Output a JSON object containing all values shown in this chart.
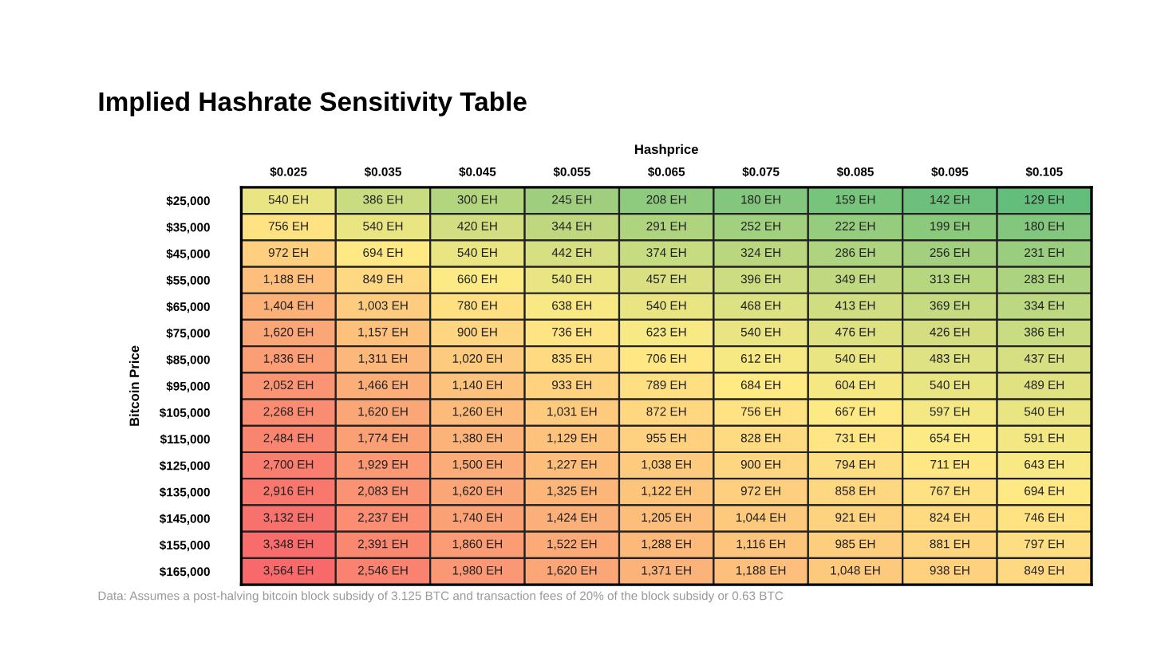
{
  "chart_data": {
    "type": "heatmap",
    "title": "Implied Hashrate Sensitivity Table",
    "xlabel": "Hashprice",
    "ylabel": "Bitcoin Price",
    "annotations": [
      "Data: Assumes a post-halving bitcoin block subsidy of 3.125 BTC and transaction fees of 20% of the block subsidy or 0.63 BTC"
    ],
    "categories": [
      "$0.025",
      "$0.035",
      "$0.045",
      "$0.055",
      "$0.065",
      "$0.075",
      "$0.085",
      "$0.095",
      "$0.105"
    ],
    "y_categories": [
      "$25,000",
      "$35,000",
      "$45,000",
      "$55,000",
      "$65,000",
      "$75,000",
      "$85,000",
      "$95,000",
      "$105,000",
      "$115,000",
      "$125,000",
      "$135,000",
      "$145,000",
      "$155,000",
      "$165,000"
    ],
    "cells": [
      [
        540,
        386,
        300,
        245,
        208,
        180,
        159,
        142,
        129
      ],
      [
        756,
        540,
        420,
        344,
        291,
        252,
        222,
        199,
        180
      ],
      [
        972,
        694,
        540,
        442,
        374,
        324,
        286,
        256,
        231
      ],
      [
        1188,
        849,
        660,
        540,
        457,
        396,
        349,
        313,
        283
      ],
      [
        1404,
        1003,
        780,
        638,
        540,
        468,
        413,
        369,
        334
      ],
      [
        1620,
        1157,
        900,
        736,
        623,
        540,
        476,
        426,
        386
      ],
      [
        1836,
        1311,
        1020,
        835,
        706,
        612,
        540,
        483,
        437
      ],
      [
        2052,
        1466,
        1140,
        933,
        789,
        684,
        604,
        540,
        489
      ],
      [
        2268,
        1620,
        1260,
        1031,
        872,
        756,
        667,
        597,
        540
      ],
      [
        2484,
        1774,
        1380,
        1129,
        955,
        828,
        731,
        654,
        591
      ],
      [
        2700,
        1929,
        1500,
        1227,
        1038,
        900,
        794,
        711,
        643
      ],
      [
        2916,
        2083,
        1620,
        1325,
        1122,
        972,
        858,
        767,
        694
      ],
      [
        3132,
        2237,
        1740,
        1424,
        1205,
        1044,
        921,
        824,
        746
      ],
      [
        3348,
        2391,
        1860,
        1522,
        1288,
        1116,
        985,
        881,
        797
      ],
      [
        3564,
        2546,
        1980,
        1620,
        1371,
        1188,
        1048,
        938,
        849
      ]
    ],
    "cell_labels": [
      [
        "540 EH",
        "386 EH",
        "300 EH",
        "245 EH",
        "208 EH",
        "180 EH",
        "159 EH",
        "142 EH",
        "129 EH"
      ],
      [
        "756 EH",
        "540 EH",
        "420 EH",
        "344 EH",
        "291 EH",
        "252 EH",
        "222 EH",
        "199 EH",
        "180 EH"
      ],
      [
        "972 EH",
        "694 EH",
        "540 EH",
        "442 EH",
        "374 EH",
        "324 EH",
        "286 EH",
        "256 EH",
        "231 EH"
      ],
      [
        "1,188 EH",
        "849 EH",
        "660 EH",
        "540 EH",
        "457 EH",
        "396 EH",
        "349 EH",
        "313 EH",
        "283 EH"
      ],
      [
        "1,404 EH",
        "1,003 EH",
        "780 EH",
        "638 EH",
        "540 EH",
        "468 EH",
        "413 EH",
        "369 EH",
        "334 EH"
      ],
      [
        "1,620 EH",
        "1,157 EH",
        "900 EH",
        "736 EH",
        "623 EH",
        "540 EH",
        "476 EH",
        "426 EH",
        "386 EH"
      ],
      [
        "1,836 EH",
        "1,311 EH",
        "1,020 EH",
        "835 EH",
        "706 EH",
        "612 EH",
        "540 EH",
        "483 EH",
        "437 EH"
      ],
      [
        "2,052 EH",
        "1,466 EH",
        "1,140 EH",
        "933 EH",
        "789 EH",
        "684 EH",
        "604 EH",
        "540 EH",
        "489 EH"
      ],
      [
        "2,268 EH",
        "1,620 EH",
        "1,260 EH",
        "1,031 EH",
        "872 EH",
        "756 EH",
        "667 EH",
        "597 EH",
        "540 EH"
      ],
      [
        "2,484 EH",
        "1,774 EH",
        "1,380 EH",
        "1,129 EH",
        "955 EH",
        "828 EH",
        "731 EH",
        "654 EH",
        "591 EH"
      ],
      [
        "2,700 EH",
        "1,929 EH",
        "1,500 EH",
        "1,227 EH",
        "1,038 EH",
        "900 EH",
        "794 EH",
        "711 EH",
        "643 EH"
      ],
      [
        "2,916 EH",
        "2,083 EH",
        "1,620 EH",
        "1,325 EH",
        "1,122 EH",
        "972 EH",
        "858 EH",
        "767 EH",
        "694 EH"
      ],
      [
        "3,132 EH",
        "2,237 EH",
        "1,740 EH",
        "1,424 EH",
        "1,205 EH",
        "1,044 EH",
        "921 EH",
        "824 EH",
        "746 EH"
      ],
      [
        "3,348 EH",
        "2,391 EH",
        "1,860 EH",
        "1,522 EH",
        "1,288 EH",
        "1,116 EH",
        "985 EH",
        "881 EH",
        "797 EH"
      ],
      [
        "3,564 EH",
        "2,546 EH",
        "1,980 EH",
        "1,620 EH",
        "1,371 EH",
        "1,188 EH",
        "1,048 EH",
        "938 EH",
        "849 EH"
      ]
    ]
  }
}
